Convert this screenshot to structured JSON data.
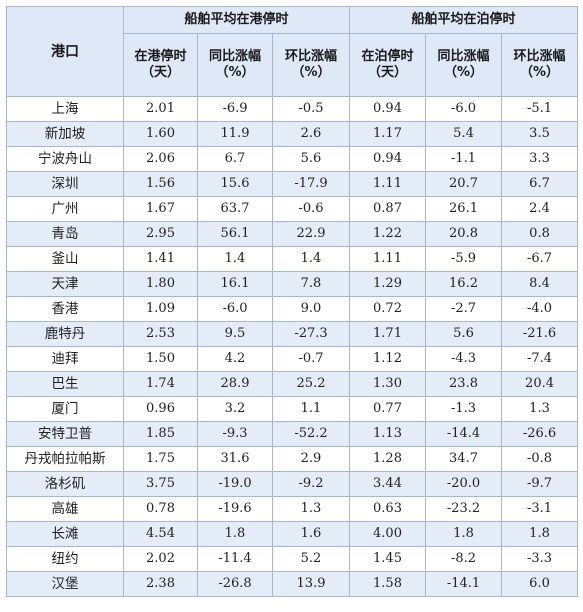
{
  "header": {
    "port": "港口",
    "group_port": "船舶平均在港停时",
    "group_berth": "船舶平均在泊停时",
    "cols": [
      {
        "label": "在港停时",
        "unit": "（天）"
      },
      {
        "label": "同比涨幅",
        "unit": "（%）"
      },
      {
        "label": "环比涨幅",
        "unit": "（%）"
      },
      {
        "label": "在泊停时",
        "unit": "（天）"
      },
      {
        "label": "同比涨幅",
        "unit": "（%）"
      },
      {
        "label": "环比涨幅",
        "unit": "（%）"
      }
    ]
  },
  "rows": [
    [
      "上海",
      "2.01",
      "-6.9",
      "-0.5",
      "0.94",
      "-6.0",
      "-5.1"
    ],
    [
      "新加坡",
      "1.60",
      "11.9",
      "2.6",
      "1.17",
      "5.4",
      "3.5"
    ],
    [
      "宁波舟山",
      "2.06",
      "6.7",
      "5.6",
      "0.94",
      "-1.1",
      "3.3"
    ],
    [
      "深圳",
      "1.56",
      "15.6",
      "-17.9",
      "1.11",
      "20.7",
      "6.7"
    ],
    [
      "广州",
      "1.67",
      "63.7",
      "-0.6",
      "0.87",
      "26.1",
      "2.4"
    ],
    [
      "青岛",
      "2.95",
      "56.1",
      "22.9",
      "1.22",
      "20.8",
      "0.8"
    ],
    [
      "釜山",
      "1.41",
      "1.4",
      "1.4",
      "1.11",
      "-5.9",
      "-6.7"
    ],
    [
      "天津",
      "1.80",
      "16.1",
      "7.8",
      "1.29",
      "16.2",
      "8.4"
    ],
    [
      "香港",
      "1.09",
      "-6.0",
      "9.0",
      "0.72",
      "-2.7",
      "-4.0"
    ],
    [
      "鹿特丹",
      "2.53",
      "9.5",
      "-27.3",
      "1.71",
      "5.6",
      "-21.6"
    ],
    [
      "迪拜",
      "1.50",
      "4.2",
      "-0.7",
      "1.12",
      "-4.3",
      "-7.4"
    ],
    [
      "巴生",
      "1.74",
      "28.9",
      "25.2",
      "1.30",
      "23.8",
      "20.4"
    ],
    [
      "厦门",
      "0.96",
      "3.2",
      "1.1",
      "0.77",
      "-1.3",
      "1.3"
    ],
    [
      "安特卫普",
      "1.85",
      "-9.3",
      "-52.2",
      "1.13",
      "-14.4",
      "-26.6"
    ],
    [
      "丹戎帕拉帕斯",
      "1.75",
      "31.6",
      "2.9",
      "1.28",
      "34.7",
      "-0.8"
    ],
    [
      "洛杉矶",
      "3.75",
      "-19.0",
      "-9.2",
      "3.44",
      "-20.0",
      "-9.7"
    ],
    [
      "高雄",
      "0.78",
      "-19.6",
      "1.3",
      "0.63",
      "-23.2",
      "-3.1"
    ],
    [
      "长滩",
      "4.54",
      "1.8",
      "1.6",
      "4.00",
      "1.8",
      "1.8"
    ],
    [
      "纽约",
      "2.02",
      "-11.4",
      "5.2",
      "1.45",
      "-8.2",
      "-3.3"
    ],
    [
      "汉堡",
      "2.38",
      "-26.8",
      "13.9",
      "1.58",
      "-14.1",
      "6.0"
    ]
  ]
}
